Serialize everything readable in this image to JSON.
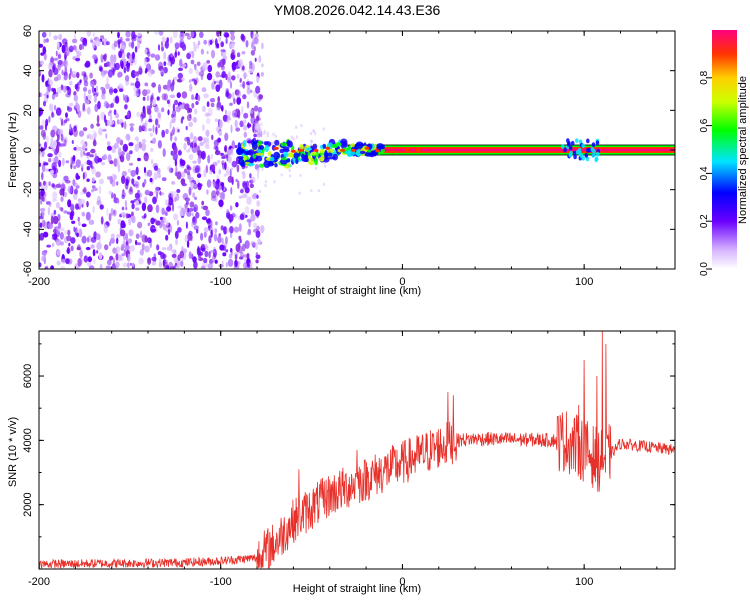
{
  "figure": {
    "title": "YM08.2026.042.14.43.E36"
  },
  "chart_data": [
    {
      "type": "heatmap",
      "title": "YM08.2026.042.14.43.E36",
      "xlabel": "Height of straight line (km)",
      "ylabel": "Frequency (Hz)",
      "xlim": [
        -200,
        150
      ],
      "ylim": [
        -60,
        60
      ],
      "x_ticks": [
        "-200",
        "-100",
        "0",
        "100"
      ],
      "y_ticks": [
        "-60",
        "-40",
        "-20",
        "0",
        "20",
        "40",
        "60"
      ],
      "colorbar": {
        "label": "Normalized spectral amplitude",
        "range": [
          0.0,
          1.0
        ],
        "ticks": [
          "0.0",
          "0.2",
          "0.4",
          "0.6",
          "0.8"
        ]
      },
      "features": {
        "noise_region_x": [
          -200,
          -80
        ],
        "signal_line_freq": 0,
        "signal_start_x": -85
      }
    },
    {
      "type": "line",
      "xlabel": "Height of straight line (km)",
      "ylabel": "SNR (10 * v/v)",
      "xlim": [
        -200,
        150
      ],
      "ylim": [
        0,
        7400
      ],
      "x_ticks": [
        "-200",
        "-100",
        "0",
        "100"
      ],
      "y_ticks": [
        "2000",
        "4000",
        "6000"
      ],
      "series": [
        {
          "name": "SNR",
          "color": "#e8302a",
          "profile_x": [
            -200,
            -120,
            -100,
            -80,
            -70,
            -60,
            -40,
            -20,
            0,
            20,
            30,
            40,
            90,
            100,
            110,
            120,
            150
          ],
          "profile_y": [
            150,
            200,
            250,
            350,
            800,
            1500,
            2300,
            2800,
            3300,
            3800,
            4000,
            4050,
            4000,
            3700,
            3300,
            3900,
            3700
          ],
          "spikes": [
            {
              "x": -57,
              "y": 3100
            },
            {
              "x": -45,
              "y": 2700
            },
            {
              "x": -25,
              "y": 3700
            },
            {
              "x": 25,
              "y": 5500
            },
            {
              "x": 28,
              "y": 5400
            },
            {
              "x": 97,
              "y": 5100
            },
            {
              "x": 100,
              "y": 6500
            },
            {
              "x": 107,
              "y": 6000
            },
            {
              "x": 110,
              "y": 7400
            },
            {
              "x": 112,
              "y": 7000
            }
          ]
        }
      ]
    }
  ]
}
